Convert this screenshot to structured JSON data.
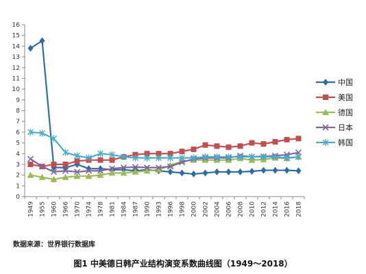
{
  "chart_data": {
    "type": "line",
    "categories": [
      "1949",
      "1955",
      "1960",
      "1966",
      "1970",
      "1974",
      "1978",
      "1981",
      "1984",
      "1987",
      "1990",
      "1993",
      "1996",
      "1998",
      "2000",
      "2002",
      "2004",
      "2006",
      "2008",
      "2010",
      "2012",
      "2014",
      "2016",
      "2018"
    ],
    "ylim": [
      0,
      16
    ],
    "yticks": [
      0,
      1,
      2,
      3,
      4,
      5,
      6,
      7,
      8,
      9,
      10,
      11,
      12,
      13,
      14,
      15,
      16
    ],
    "grid": false,
    "legend_position": "right",
    "series": [
      {
        "name": "中国",
        "color": "#2e6da4",
        "marker": "diamond",
        "values": [
          13.8,
          14.5,
          2.7,
          2.7,
          3.0,
          2.6,
          2.6,
          2.5,
          2.5,
          2.4,
          2.5,
          2.4,
          2.3,
          2.2,
          2.1,
          2.2,
          2.3,
          2.3,
          2.3,
          2.35,
          2.45,
          2.45,
          2.45,
          2.4
        ]
      },
      {
        "name": "美国",
        "color": "#c0504d",
        "marker": "square",
        "values": [
          3.0,
          2.8,
          3.0,
          3.0,
          3.3,
          3.4,
          3.4,
          3.4,
          3.7,
          3.9,
          4.0,
          4.0,
          4.0,
          4.2,
          4.4,
          4.8,
          4.7,
          4.6,
          4.7,
          5.0,
          4.9,
          5.1,
          5.3,
          5.4
        ]
      },
      {
        "name": "德国",
        "color": "#9bbb59",
        "marker": "triangle",
        "values": [
          2.0,
          1.8,
          1.6,
          1.8,
          1.9,
          1.9,
          2.0,
          2.2,
          2.2,
          2.3,
          2.4,
          2.5,
          2.9,
          3.3,
          3.4,
          3.4,
          3.4,
          3.4,
          3.55,
          3.4,
          3.45,
          3.6,
          3.55,
          3.7
        ]
      },
      {
        "name": "日本",
        "color": "#8064a2",
        "marker": "x",
        "values": [
          3.5,
          2.8,
          2.3,
          2.4,
          2.3,
          2.4,
          2.4,
          2.6,
          2.7,
          2.75,
          2.7,
          2.7,
          2.8,
          3.2,
          3.5,
          3.6,
          3.6,
          3.6,
          3.8,
          3.7,
          3.75,
          3.8,
          3.9,
          4.1
        ]
      },
      {
        "name": "韩国",
        "color": "#4bacc6",
        "marker": "star",
        "values": [
          6.0,
          5.9,
          5.4,
          4.1,
          3.8,
          3.6,
          4.0,
          3.9,
          3.7,
          3.6,
          3.6,
          3.6,
          3.6,
          3.6,
          3.6,
          3.7,
          3.7,
          3.7,
          3.7,
          3.7,
          3.7,
          3.7,
          3.6,
          3.7
        ]
      }
    ]
  },
  "source_note": "数据来源：世界银行数据库",
  "caption": "图1  中美德日韩产业结构演变系数曲线图（1949～2018）"
}
